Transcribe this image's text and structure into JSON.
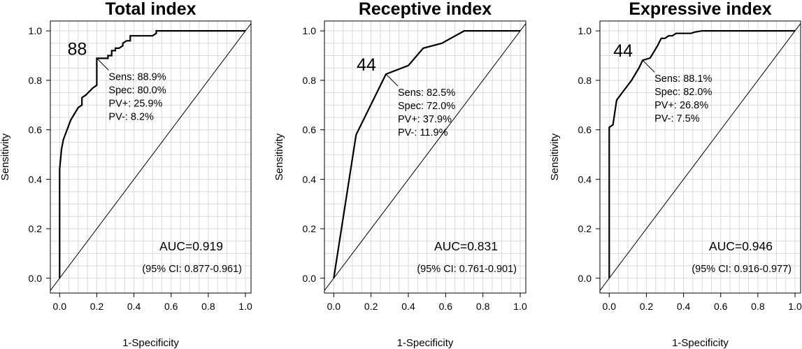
{
  "chart_data": [
    {
      "type": "line",
      "title": "Total index",
      "xlabel": "1-Specificity",
      "ylabel": "Sensitivity",
      "xlim": [
        0,
        1
      ],
      "ylim": [
        0,
        1
      ],
      "x_ticks": [
        "0.0",
        "0.2",
        "0.4",
        "0.6",
        "0.8",
        "1.0"
      ],
      "y_ticks": [
        "0.0",
        "0.2",
        "0.4",
        "0.6",
        "0.8",
        "1.0"
      ],
      "grid": true,
      "reference_line": "diagonal",
      "roc": {
        "x": [
          0,
          0,
          0.005,
          0.01,
          0.02,
          0.04,
          0.06,
          0.1,
          0.12,
          0.12,
          0.14,
          0.18,
          0.2,
          0.2,
          0.2,
          0.26,
          0.26,
          0.28,
          0.28,
          0.3,
          0.3,
          0.32,
          0.34,
          0.34,
          0.36,
          0.38,
          0.38,
          0.44,
          0.5,
          0.52,
          0.52,
          0.6,
          0.8,
          1.0
        ],
        "y": [
          0,
          0.44,
          0.48,
          0.52,
          0.56,
          0.6,
          0.64,
          0.69,
          0.7,
          0.73,
          0.74,
          0.77,
          0.78,
          0.82,
          0.889,
          0.889,
          0.9,
          0.9,
          0.92,
          0.92,
          0.93,
          0.93,
          0.94,
          0.95,
          0.96,
          0.96,
          0.98,
          0.98,
          0.98,
          0.99,
          1.0,
          1.0,
          1.0,
          1.0
        ]
      },
      "cutoff": {
        "label": "88",
        "x": 0.2,
        "y": 0.889,
        "stats": [
          "Sens: 88.9%",
          "Spec: 80.0%",
          "PV+: 25.9%",
          "PV-: 8.2%"
        ]
      },
      "auc_label": "AUC=0.919",
      "ci_label": "(95% CI: 0.877-0.961)"
    },
    {
      "type": "line",
      "title": "Receptive index",
      "xlabel": "1-Specificity",
      "ylabel": "Sensitivity",
      "xlim": [
        0,
        1
      ],
      "ylim": [
        0,
        1
      ],
      "x_ticks": [
        "0.0",
        "0.2",
        "0.4",
        "0.6",
        "0.8",
        "1.0"
      ],
      "y_ticks": [
        "0.0",
        "0.2",
        "0.4",
        "0.6",
        "0.8",
        "1.0"
      ],
      "grid": true,
      "reference_line": "diagonal",
      "roc": {
        "x": [
          0,
          0.12,
          0.28,
          0.4,
          0.48,
          0.58,
          0.7,
          0.8,
          1.0
        ],
        "y": [
          0,
          0.58,
          0.825,
          0.86,
          0.93,
          0.95,
          1.0,
          1.0,
          1.0
        ]
      },
      "cutoff": {
        "label": "44",
        "x": 0.28,
        "y": 0.825,
        "stats": [
          "Sens: 82.5%",
          "Spec: 72.0%",
          "PV+: 37.9%",
          "PV-: 11.9%"
        ]
      },
      "auc_label": "AUC=0.831",
      "ci_label": "(95% CI: 0.761-0.901)"
    },
    {
      "type": "line",
      "title": "Expressive index",
      "xlabel": "1-Specificity",
      "ylabel": "Sensitivity",
      "xlim": [
        0,
        1
      ],
      "ylim": [
        0,
        1
      ],
      "x_ticks": [
        "0.0",
        "0.2",
        "0.4",
        "0.6",
        "0.8",
        "1.0"
      ],
      "y_ticks": [
        "0.0",
        "0.2",
        "0.4",
        "0.6",
        "0.8",
        "1.0"
      ],
      "grid": true,
      "reference_line": "diagonal",
      "roc": {
        "x": [
          0,
          0,
          0.02,
          0.04,
          0.08,
          0.12,
          0.16,
          0.18,
          0.22,
          0.26,
          0.28,
          0.3,
          0.32,
          0.34,
          0.36,
          0.42,
          0.44,
          0.46,
          0.5,
          0.52,
          0.8,
          1.0
        ],
        "y": [
          0,
          0.61,
          0.62,
          0.72,
          0.76,
          0.8,
          0.85,
          0.881,
          0.89,
          0.94,
          0.97,
          0.97,
          0.98,
          0.98,
          0.99,
          0.99,
          0.99,
          0.995,
          1.0,
          1.0,
          1.0,
          1.0
        ]
      },
      "cutoff": {
        "label": "44",
        "x": 0.18,
        "y": 0.881,
        "stats": [
          "Sens: 88.1%",
          "Spec: 82.0%",
          "PV+: 26.8%",
          "PV-: 7.5%"
        ]
      },
      "auc_label": "AUC=0.946",
      "ci_label": "(95% CI: 0.916-0.977)"
    }
  ]
}
